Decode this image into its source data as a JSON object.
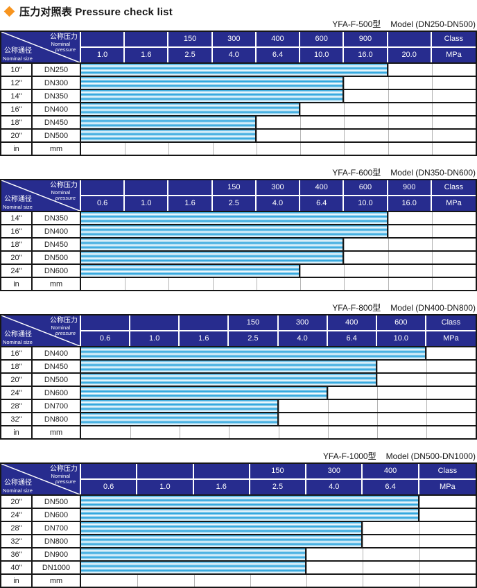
{
  "title": {
    "text": "压力对照表 Pressure check list"
  },
  "diagonal_header": {
    "pressure_zh": "公称压力",
    "pressure_en_1": "Nominal",
    "pressure_en_2": "pressure",
    "size_zh": "公称通径",
    "size_en": "Nominal size"
  },
  "colors": {
    "header_navy": "#272c8e",
    "bar_blue": "#1f9fdb",
    "diamond_orange": "#f7941e",
    "border_dark": "#161616",
    "grid_light": "#b3b3b3"
  },
  "tables": [
    {
      "model": "YFA-F-500型",
      "model_range": "Model (DN250-DN500)",
      "class_row": [
        "",
        "",
        "150",
        "300",
        "400",
        "600",
        "900",
        "",
        "Class"
      ],
      "mpa_row": [
        "1.0",
        "1.6",
        "2.5",
        "4.0",
        "6.4",
        "10.0",
        "16.0",
        "20.0",
        "MPa"
      ],
      "rows": [
        {
          "inch": "10\"",
          "dn": "DN250",
          "max_mpa": "16.0",
          "bar_cols": 7
        },
        {
          "inch": "12\"",
          "dn": "DN300",
          "max_mpa": "10.0",
          "bar_cols": 6
        },
        {
          "inch": "14\"",
          "dn": "DN350",
          "max_mpa": "10.0",
          "bar_cols": 6
        },
        {
          "inch": "16\"",
          "dn": "DN400",
          "max_mpa": "6.4",
          "bar_cols": 5
        },
        {
          "inch": "18\"",
          "dn": "DN450",
          "max_mpa": "4.0",
          "bar_cols": 4
        },
        {
          "inch": "20\"",
          "dn": "DN500",
          "max_mpa": "4.0",
          "bar_cols": 4
        }
      ],
      "footer": {
        "inch": "in",
        "dn": "mm"
      }
    },
    {
      "model": "YFA-F-600型",
      "model_range": "Model (DN350-DN600)",
      "class_row": [
        "",
        "",
        "",
        "150",
        "300",
        "400",
        "600",
        "900",
        "Class"
      ],
      "mpa_row": [
        "0.6",
        "1.0",
        "1.6",
        "2.5",
        "4.0",
        "6.4",
        "10.0",
        "16.0",
        "MPa"
      ],
      "rows": [
        {
          "inch": "14\"",
          "dn": "DN350",
          "max_mpa": "10.0",
          "bar_cols": 7
        },
        {
          "inch": "16\"",
          "dn": "DN400",
          "max_mpa": "10.0",
          "bar_cols": 7
        },
        {
          "inch": "18\"",
          "dn": "DN450",
          "max_mpa": "6.4",
          "bar_cols": 6
        },
        {
          "inch": "20\"",
          "dn": "DN500",
          "max_mpa": "6.4",
          "bar_cols": 6
        },
        {
          "inch": "24\"",
          "dn": "DN600",
          "max_mpa": "4.0",
          "bar_cols": 5
        }
      ],
      "footer": {
        "inch": "in",
        "dn": "mm"
      }
    },
    {
      "model": "YFA-F-800型",
      "model_range": "Model (DN400-DN800)",
      "class_row": [
        "",
        "",
        "",
        "150",
        "300",
        "400",
        "600",
        "Class"
      ],
      "mpa_row": [
        "0.6",
        "1.0",
        "1.6",
        "2.5",
        "4.0",
        "6.4",
        "10.0",
        "MPa"
      ],
      "rows": [
        {
          "inch": "16\"",
          "dn": "DN400",
          "max_mpa": "10.0",
          "bar_cols": 7
        },
        {
          "inch": "18\"",
          "dn": "DN450",
          "max_mpa": "6.4",
          "bar_cols": 6
        },
        {
          "inch": "20\"",
          "dn": "DN500",
          "max_mpa": "6.4",
          "bar_cols": 6
        },
        {
          "inch": "24\"",
          "dn": "DN600",
          "max_mpa": "4.0",
          "bar_cols": 5
        },
        {
          "inch": "28\"",
          "dn": "DN700",
          "max_mpa": "2.5",
          "bar_cols": 4
        },
        {
          "inch": "32\"",
          "dn": "DN800",
          "max_mpa": "2.5",
          "bar_cols": 4
        }
      ],
      "footer": {
        "inch": "in",
        "dn": "mm"
      }
    },
    {
      "model": "YFA-F-1000型",
      "model_range": "Model (DN500-DN1000)",
      "class_row": [
        "",
        "",
        "",
        "150",
        "300",
        "400",
        "Class"
      ],
      "mpa_row": [
        "0.6",
        "1.0",
        "1.6",
        "2.5",
        "4.0",
        "6.4",
        "MPa"
      ],
      "rows": [
        {
          "inch": "20\"",
          "dn": "DN500",
          "max_mpa": "6.4",
          "bar_cols": 6
        },
        {
          "inch": "24\"",
          "dn": "DN600",
          "max_mpa": "6.4",
          "bar_cols": 6
        },
        {
          "inch": "28\"",
          "dn": "DN700",
          "max_mpa": "4.0",
          "bar_cols": 5
        },
        {
          "inch": "32\"",
          "dn": "DN800",
          "max_mpa": "4.0",
          "bar_cols": 5
        },
        {
          "inch": "36\"",
          "dn": "DN900",
          "max_mpa": "2.5",
          "bar_cols": 4
        },
        {
          "inch": "40\"",
          "dn": "DN1000",
          "max_mpa": "2.5",
          "bar_cols": 4
        }
      ],
      "footer": {
        "inch": "in",
        "dn": "mm"
      }
    }
  ]
}
